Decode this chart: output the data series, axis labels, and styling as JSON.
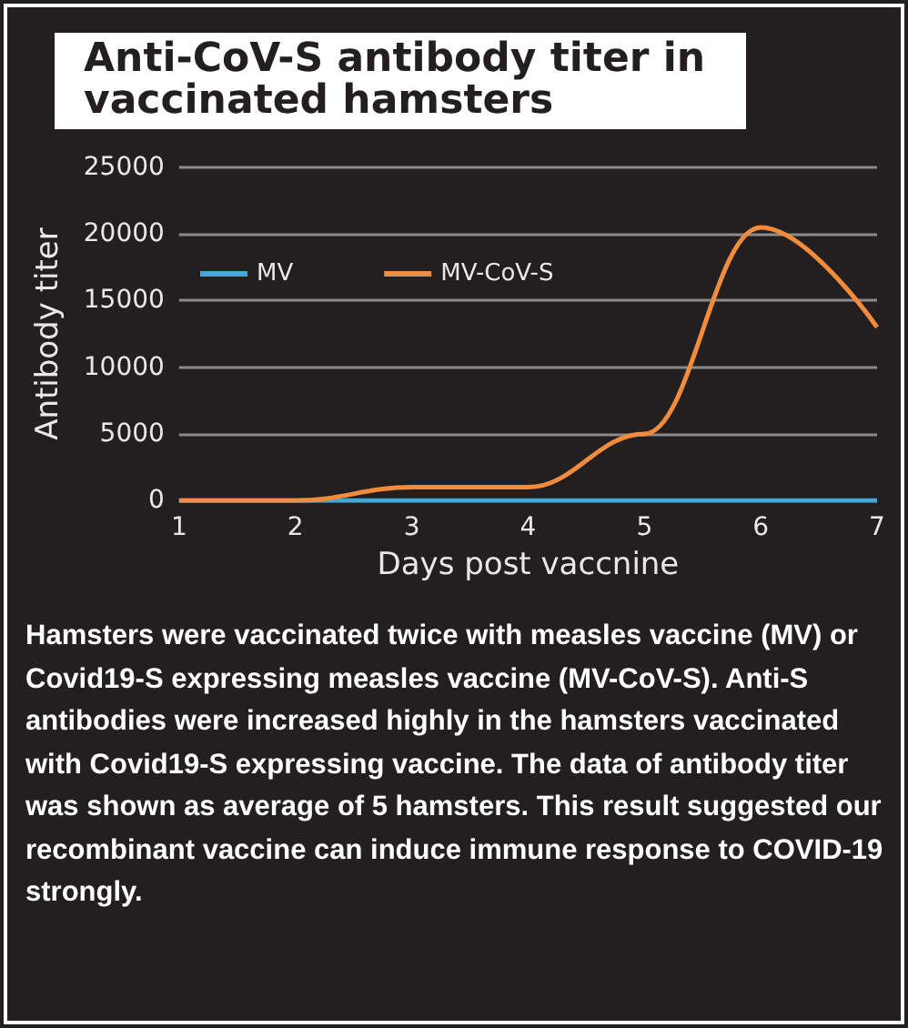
{
  "chart_data": {
    "type": "line",
    "title": "Anti-CoV-S antibody titer in vaccinated hamsters",
    "xlabel": "Days post vaccnine",
    "ylabel": "Antibody titer",
    "categories": [
      "1",
      "2",
      "3",
      "4",
      "5",
      "6",
      "7"
    ],
    "series": [
      {
        "name": "MV",
        "color": "#3fa9dc",
        "values": [
          0,
          0,
          0,
          0,
          0,
          0,
          0
        ]
      },
      {
        "name": "MV-CoV-S",
        "color": "#f28c3c",
        "values": [
          0,
          0,
          1000,
          1000,
          5000,
          20500,
          13000
        ]
      }
    ],
    "ylim": [
      0,
      25000
    ],
    "yticks": [
      0,
      5000,
      10000,
      15000,
      20000,
      25000
    ],
    "grid": "y",
    "legend": "top left",
    "marker": "none",
    "annotations": [
      "Hamsters were vaccinated twice with measles vaccine (MV) or Covid19-S expressing measles vaccine (MV-CoV-S). Anti-S antibodies were increased highly in the hamsters vaccinated with Covid19-S expressing vaccine. The data of antibody titer was shown as average of 5 hamsters. This result suggested our recombinant vaccine can induce immune response to COVID-19 strongly."
    ]
  }
}
